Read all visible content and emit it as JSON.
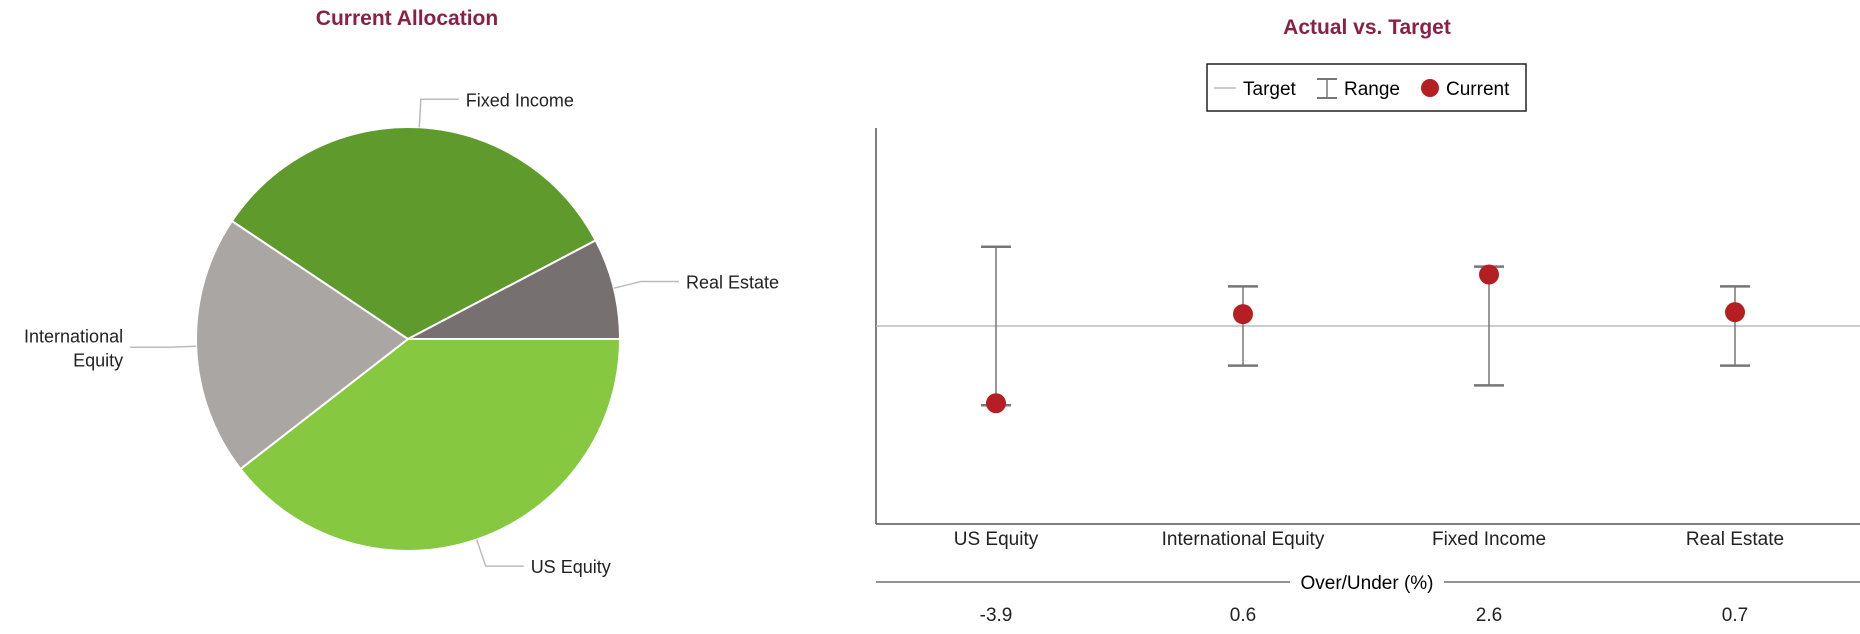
{
  "colors": {
    "title": "#8a2046",
    "us_equity": "#86c840",
    "international_equity": "#aaa6a4",
    "fixed_income": "#5f9a2c",
    "real_estate": "#767070",
    "current_marker": "#b51f24",
    "range": "#777777",
    "target_line": "#bbbbbb",
    "leader_line": "#bbbbbb",
    "axis": "#555555"
  },
  "chart_data": [
    {
      "type": "pie",
      "title": "Current Allocation",
      "slices": [
        {
          "label": "US Equity",
          "lines": [
            "US Equity"
          ],
          "value": 39.5,
          "color_key": "us_equity",
          "label_side": "right"
        },
        {
          "label": "International Equity",
          "lines": [
            "International",
            "Equity"
          ],
          "value": 19.9,
          "color_key": "international_equity",
          "label_side": "left"
        },
        {
          "label": "Fixed Income",
          "lines": [
            "Fixed Income"
          ],
          "value": 32.9,
          "color_key": "fixed_income",
          "label_side": "right"
        },
        {
          "label": "Real Estate",
          "lines": [
            "Real Estate"
          ],
          "value": 7.7,
          "color_key": "real_estate",
          "label_side": "right"
        }
      ]
    },
    {
      "type": "scatter",
      "title": "Actual vs. Target",
      "legend": {
        "position": "top-center",
        "items": [
          "Target",
          "Range",
          "Current"
        ]
      },
      "categories": [
        "US Equity",
        "International Equity",
        "Fixed Income",
        "Real Estate"
      ],
      "target": 0,
      "ylim": [
        -10,
        10
      ],
      "range_low": [
        -4,
        -2,
        -3,
        -2
      ],
      "range_high": [
        4,
        2,
        3,
        2
      ],
      "current": [
        -3.9,
        0.6,
        2.6,
        0.7
      ],
      "table": {
        "label": "Over/Under (%)",
        "values": [
          "-3.9",
          "0.6",
          "2.6",
          "0.7"
        ]
      }
    }
  ]
}
